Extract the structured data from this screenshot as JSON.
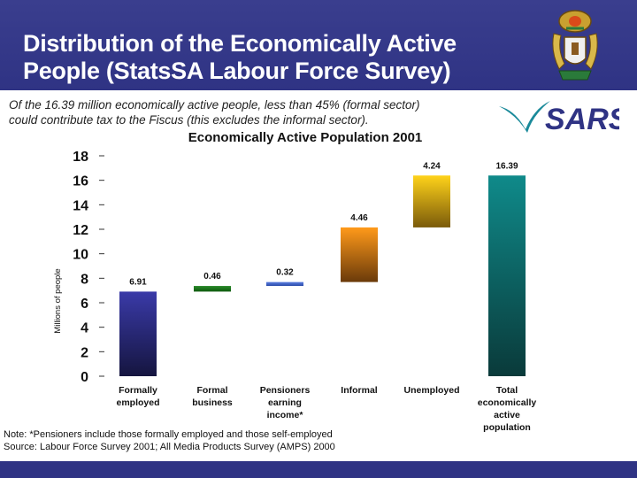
{
  "header": {
    "title_line1": "Distribution of the Economically Active",
    "title_line2": "People (StatsSA Labour Force Survey)",
    "bg_color": "#2f3384"
  },
  "subtitle": {
    "line1": "Of the 16.39 million economically active people, less than 45% (formal sector)",
    "line2": "could contribute tax to the Fiscus (this excludes the informal sector)."
  },
  "logo": {
    "text": "SARS"
  },
  "chart_data": {
    "type": "bar",
    "subtype": "waterfall",
    "title": "Economically Active Population 2001",
    "ylabel": "Millions of people",
    "xlabel": "",
    "ylim": [
      0,
      18
    ],
    "yticks": [
      0,
      2,
      4,
      6,
      8,
      10,
      12,
      14,
      16,
      18
    ],
    "categories": [
      {
        "lines": [
          "Formally",
          "employed"
        ]
      },
      {
        "lines": [
          "Formal",
          "business"
        ]
      },
      {
        "lines": [
          "Pensioners",
          "earning",
          "income*"
        ]
      },
      {
        "lines": [
          "Informal"
        ]
      },
      {
        "lines": [
          "Unemployed"
        ]
      },
      {
        "lines": [
          "Total",
          "economically",
          "active",
          "population"
        ]
      }
    ],
    "values": [
      6.91,
      0.46,
      0.32,
      4.46,
      4.24,
      16.39
    ],
    "labels": [
      "6.91",
      "0.46",
      "0.32",
      "4.46",
      "4.24",
      "16.39"
    ],
    "bases": [
      0,
      6.91,
      7.37,
      7.69,
      12.15,
      0
    ],
    "colors": [
      [
        "#3a3aa8",
        "#15153f"
      ],
      [
        "#2a8a2a",
        "#0e5a0e"
      ],
      [
        "#5a7ee0",
        "#2a4aa8"
      ],
      [
        "#ff9a1a",
        "#6a3a0a"
      ],
      [
        "#ffd31a",
        "#7a5a0a"
      ],
      [
        "#0f8a8a",
        "#0a3a3a"
      ]
    ]
  },
  "note": {
    "line1": "Note: *Pensioners include those formally employed and those self-employed",
    "line2": "Source:  Labour Force Survey 2001; All Media Products Survey (AMPS) 2000"
  }
}
